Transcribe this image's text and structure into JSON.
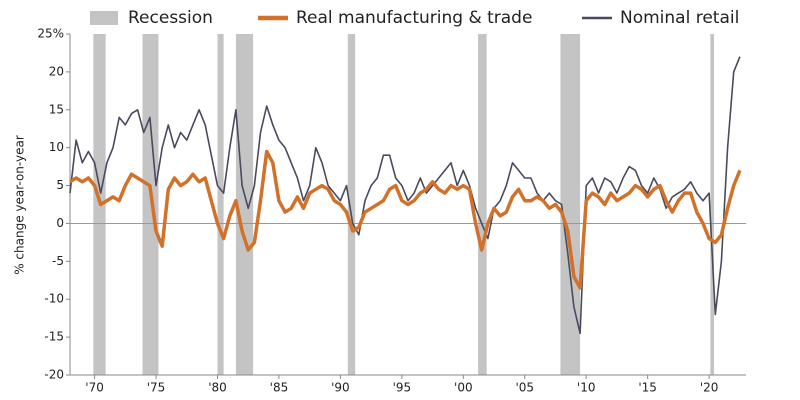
{
  "chart_data": {
    "type": "line",
    "ylabel": "% change year-on-year",
    "recession_label": "Recession",
    "recession_color": "#c4c4c4",
    "recessions": [
      [
        1969.9,
        1970.9
      ],
      [
        1973.9,
        1975.2
      ],
      [
        1980.0,
        1980.5
      ],
      [
        1981.5,
        1982.9
      ],
      [
        1990.6,
        1991.2
      ],
      [
        2001.2,
        2001.9
      ],
      [
        2007.9,
        2009.5
      ],
      [
        2020.1,
        2020.4
      ]
    ],
    "x": [
      1968,
      1968.5,
      1969,
      1969.5,
      1970,
      1970.5,
      1971,
      1971.5,
      1972,
      1972.5,
      1973,
      1973.5,
      1974,
      1974.5,
      1975,
      1975.5,
      1976,
      1976.5,
      1977,
      1977.5,
      1978,
      1978.5,
      1979,
      1979.5,
      1980,
      1980.5,
      1981,
      1981.5,
      1982,
      1982.5,
      1983,
      1983.5,
      1984,
      1984.5,
      1985,
      1985.5,
      1986,
      1986.5,
      1987,
      1987.5,
      1988,
      1988.5,
      1989,
      1989.5,
      1990,
      1990.5,
      1991,
      1991.5,
      1992,
      1992.5,
      1993,
      1993.5,
      1994,
      1994.5,
      1995,
      1995.5,
      1996,
      1996.5,
      1997,
      1997.5,
      1998,
      1998.5,
      1999,
      1999.5,
      2000,
      2000.5,
      2001,
      2001.5,
      2002,
      2002.5,
      2003,
      2003.5,
      2004,
      2004.5,
      2005,
      2005.5,
      2006,
      2006.5,
      2007,
      2007.5,
      2008,
      2008.5,
      2009,
      2009.5,
      2010,
      2010.5,
      2011,
      2011.5,
      2012,
      2012.5,
      2013,
      2013.5,
      2014,
      2014.5,
      2015,
      2015.5,
      2016,
      2016.5,
      2017,
      2017.5,
      2018,
      2018.5,
      2019,
      2019.5,
      2020,
      2020.5,
      2021,
      2021.5,
      2022,
      2022.5
    ],
    "series": [
      {
        "name": "Real manufacturing & trade",
        "color": "#d2712a",
        "width": 3.5,
        "values": [
          5.5,
          6,
          5.5,
          6,
          5,
          2.5,
          3,
          3.5,
          3,
          5,
          6.5,
          6,
          5.5,
          5,
          -1,
          -3,
          4.5,
          6,
          5,
          5.5,
          6.5,
          5.5,
          6,
          3,
          0,
          -2,
          1,
          3,
          -1,
          -3.5,
          -2.5,
          3,
          9.5,
          8,
          3,
          1.5,
          2,
          3.5,
          2,
          4,
          4.5,
          5,
          4.5,
          3,
          2.5,
          1.5,
          -1,
          -0.5,
          1.5,
          2,
          2.5,
          3,
          4.5,
          5,
          3,
          2.5,
          3,
          4,
          4.5,
          5.5,
          4.5,
          4,
          5,
          4.5,
          5,
          4.5,
          0,
          -3.5,
          0,
          2,
          1,
          1.5,
          3.5,
          4.5,
          3,
          3,
          3.5,
          3,
          2,
          2.5,
          1.5,
          -1,
          -7,
          -8.5,
          3,
          4,
          3.5,
          2.5,
          4,
          3,
          3.5,
          4,
          5,
          4.5,
          3.5,
          4.5,
          5,
          3,
          1.5,
          3,
          4,
          4,
          1.5,
          0,
          -2,
          -2.5,
          -1.5,
          2,
          5,
          7
        ]
      },
      {
        "name": "Nominal retail",
        "color": "#4a4a5e",
        "width": 1.6,
        "values": [
          4,
          11,
          8,
          9.5,
          8,
          4,
          8,
          10,
          14,
          13,
          14.5,
          15,
          12,
          14,
          5,
          10,
          13,
          10,
          12,
          11,
          13,
          15,
          13,
          9,
          5,
          4,
          10,
          15,
          5,
          2,
          5,
          12,
          15.5,
          13,
          11,
          10,
          8,
          6,
          3,
          5,
          10,
          8,
          5,
          4,
          3,
          5,
          0,
          -1.5,
          3,
          5,
          6,
          9,
          9,
          6,
          5,
          3,
          4,
          6,
          4,
          5,
          6,
          7,
          8,
          5,
          7,
          5,
          2,
          0,
          -2,
          2,
          3,
          5,
          8,
          7,
          6,
          6,
          4,
          3,
          4,
          3,
          2.5,
          -4,
          -11,
          -14.5,
          5,
          6,
          4,
          6,
          5.5,
          4,
          6,
          7.5,
          7,
          5,
          4,
          6,
          4.5,
          2,
          3.5,
          4,
          4.5,
          5.5,
          4,
          3,
          4,
          -12,
          -5,
          10,
          20,
          22
        ]
      }
    ],
    "xlim": [
      1968,
      2023
    ],
    "xticks": [
      {
        "value": 1970,
        "label": "'70"
      },
      {
        "value": 1975,
        "label": "'75"
      },
      {
        "value": 1980,
        "label": "'80"
      },
      {
        "value": 1985,
        "label": "'85"
      },
      {
        "value": 1990,
        "label": "'90"
      },
      {
        "value": 1995,
        "label": "'95"
      },
      {
        "value": 2000,
        "label": "'00"
      },
      {
        "value": 2005,
        "label": "'05"
      },
      {
        "value": 2010,
        "label": "'10"
      },
      {
        "value": 2015,
        "label": "'15"
      },
      {
        "value": 2020,
        "label": "'20"
      }
    ],
    "ylim": [
      -20,
      25
    ],
    "yticks": [
      -20,
      -15,
      -10,
      -5,
      0,
      5,
      10,
      15,
      20,
      {
        "value": 25,
        "label": "25%"
      }
    ],
    "zero_line": true
  }
}
